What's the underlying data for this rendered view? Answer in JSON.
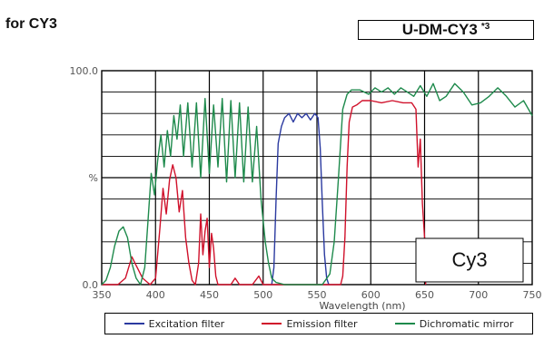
{
  "header": {
    "title": "for CY3",
    "model": "U-DM-CY3",
    "model_note": "*3"
  },
  "chart_data": {
    "type": "line",
    "title": "",
    "xlabel": "Wavelength (nm)",
    "ylabel": "%",
    "xlim": [
      350,
      750
    ],
    "ylim": [
      0,
      100
    ],
    "x_ticks": [
      "350",
      "400",
      "450",
      "500",
      "550",
      "600",
      "650",
      "700",
      "750"
    ],
    "y_ticks": [
      "100.0",
      "%",
      "0.0"
    ],
    "grid": true,
    "annotation": "Cy3",
    "series": [
      {
        "name": "Excitation filter",
        "color": "#2b3aa0",
        "points": [
          [
            508,
            0
          ],
          [
            510,
            8
          ],
          [
            512,
            40
          ],
          [
            514,
            66
          ],
          [
            517,
            74
          ],
          [
            520,
            78
          ],
          [
            524,
            80
          ],
          [
            528,
            76
          ],
          [
            532,
            80
          ],
          [
            536,
            78
          ],
          [
            540,
            80
          ],
          [
            544,
            77
          ],
          [
            548,
            80
          ],
          [
            551,
            78
          ],
          [
            553,
            64
          ],
          [
            555,
            38
          ],
          [
            557,
            14
          ],
          [
            559,
            3
          ],
          [
            561,
            0
          ]
        ]
      },
      {
        "name": "Emission filter",
        "color": "#d0112b",
        "points": [
          [
            350,
            0
          ],
          [
            365,
            0
          ],
          [
            372,
            3
          ],
          [
            378,
            13
          ],
          [
            382,
            9
          ],
          [
            388,
            3
          ],
          [
            395,
            0
          ],
          [
            400,
            3
          ],
          [
            404,
            26
          ],
          [
            407,
            45
          ],
          [
            410,
            33
          ],
          [
            413,
            49
          ],
          [
            416,
            56
          ],
          [
            419,
            50
          ],
          [
            422,
            34
          ],
          [
            425,
            44
          ],
          [
            428,
            22
          ],
          [
            431,
            10
          ],
          [
            434,
            2
          ],
          [
            437,
            0
          ],
          [
            440,
            10
          ],
          [
            442,
            33
          ],
          [
            444,
            14
          ],
          [
            446,
            25
          ],
          [
            448,
            31
          ],
          [
            450,
            8
          ],
          [
            452,
            24
          ],
          [
            454,
            17
          ],
          [
            456,
            4
          ],
          [
            458,
            0
          ],
          [
            470,
            0
          ],
          [
            474,
            3
          ],
          [
            478,
            0
          ],
          [
            490,
            0
          ],
          [
            496,
            4
          ],
          [
            500,
            0
          ],
          [
            572,
            0
          ],
          [
            574,
            4
          ],
          [
            576,
            22
          ],
          [
            578,
            55
          ],
          [
            580,
            76
          ],
          [
            583,
            83
          ],
          [
            587,
            84
          ],
          [
            592,
            86
          ],
          [
            600,
            86
          ],
          [
            610,
            85
          ],
          [
            620,
            86
          ],
          [
            630,
            85
          ],
          [
            638,
            85
          ],
          [
            642,
            82
          ],
          [
            644,
            55
          ],
          [
            646,
            68
          ],
          [
            648,
            38
          ],
          [
            650,
            22
          ],
          [
            651,
            0
          ]
        ]
      },
      {
        "name": "Dichromatic mirror",
        "color": "#1e8a4c",
        "points": [
          [
            350,
            0
          ],
          [
            354,
            2
          ],
          [
            358,
            8
          ],
          [
            362,
            18
          ],
          [
            366,
            25
          ],
          [
            370,
            27
          ],
          [
            374,
            22
          ],
          [
            378,
            10
          ],
          [
            382,
            3
          ],
          [
            386,
            0
          ],
          [
            390,
            8
          ],
          [
            393,
            30
          ],
          [
            396,
            52
          ],
          [
            399,
            42
          ],
          [
            402,
            58
          ],
          [
            405,
            70
          ],
          [
            408,
            55
          ],
          [
            411,
            72
          ],
          [
            414,
            60
          ],
          [
            417,
            79
          ],
          [
            420,
            68
          ],
          [
            423,
            84
          ],
          [
            426,
            60
          ],
          [
            430,
            85
          ],
          [
            434,
            55
          ],
          [
            438,
            85
          ],
          [
            442,
            50
          ],
          [
            446,
            87
          ],
          [
            450,
            52
          ],
          [
            454,
            84
          ],
          [
            458,
            55
          ],
          [
            462,
            87
          ],
          [
            466,
            48
          ],
          [
            470,
            86
          ],
          [
            474,
            50
          ],
          [
            478,
            85
          ],
          [
            482,
            48
          ],
          [
            486,
            83
          ],
          [
            490,
            48
          ],
          [
            494,
            74
          ],
          [
            498,
            40
          ],
          [
            502,
            20
          ],
          [
            505,
            10
          ],
          [
            508,
            3
          ],
          [
            512,
            1
          ],
          [
            520,
            0
          ],
          [
            540,
            0
          ],
          [
            555,
            0
          ],
          [
            562,
            5
          ],
          [
            566,
            20
          ],
          [
            570,
            50
          ],
          [
            574,
            82
          ],
          [
            578,
            89
          ],
          [
            582,
            91
          ],
          [
            590,
            91
          ],
          [
            598,
            89
          ],
          [
            604,
            92
          ],
          [
            610,
            90
          ],
          [
            616,
            92
          ],
          [
            622,
            89
          ],
          [
            628,
            92
          ],
          [
            634,
            90
          ],
          [
            640,
            88
          ],
          [
            646,
            93
          ],
          [
            652,
            88
          ],
          [
            658,
            94
          ],
          [
            664,
            86
          ],
          [
            670,
            88
          ],
          [
            678,
            94
          ],
          [
            686,
            90
          ],
          [
            694,
            84
          ],
          [
            702,
            85
          ],
          [
            710,
            88
          ],
          [
            718,
            92
          ],
          [
            726,
            88
          ],
          [
            734,
            83
          ],
          [
            742,
            86
          ],
          [
            750,
            79
          ]
        ]
      }
    ]
  }
}
